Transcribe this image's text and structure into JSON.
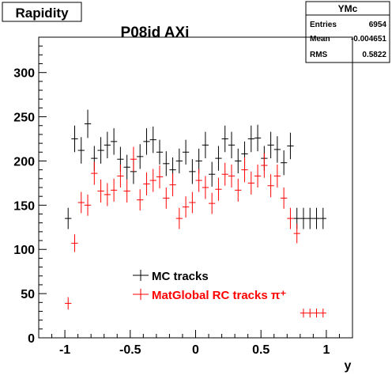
{
  "canvas_label": "Rapidity",
  "stats_box": {
    "name": "YMc",
    "rows": [
      {
        "label": "Entries",
        "value": "6954"
      },
      {
        "label": "Mean",
        "value": "-0.004651"
      },
      {
        "label": "RMS",
        "value": "0.5822"
      }
    ]
  },
  "chart_data": {
    "type": "scatter",
    "title": "P08id AXi",
    "xlabel": "y",
    "ylabel": "",
    "xlim": [
      -1.2,
      1.2
    ],
    "ylim": [
      0,
      340
    ],
    "x_ticks": [
      "-1",
      "-0.5",
      "0",
      "0.5",
      "1"
    ],
    "y_ticks": [
      "0",
      "50",
      "100",
      "150",
      "200",
      "250",
      "300"
    ],
    "bin_width": 0.05,
    "legend_position": "center-bottom",
    "series": [
      {
        "name": "MC tracks",
        "color": "#000000",
        "x": [
          -0.975,
          -0.925,
          -0.875,
          -0.825,
          -0.775,
          -0.725,
          -0.675,
          -0.625,
          -0.575,
          -0.525,
          -0.475,
          -0.425,
          -0.375,
          -0.325,
          -0.275,
          -0.225,
          -0.175,
          -0.125,
          -0.075,
          -0.025,
          0.025,
          0.075,
          0.125,
          0.175,
          0.225,
          0.275,
          0.325,
          0.375,
          0.425,
          0.475,
          0.525,
          0.575,
          0.625,
          0.675,
          0.725,
          0.775,
          0.825,
          0.875,
          0.925,
          0.975
        ],
        "values": [
          135,
          225,
          212,
          242,
          203,
          212,
          218,
          222,
          202,
          193,
          188,
          205,
          222,
          224,
          210,
          197,
          190,
          200,
          210,
          188,
          200,
          218,
          185,
          203,
          225,
          218,
          200,
          208,
          225,
          226,
          203,
          218,
          213,
          198,
          217,
          135,
          135,
          135,
          135,
          135
        ],
        "errors": [
          12,
          15,
          15,
          16,
          14,
          15,
          15,
          15,
          14,
          14,
          14,
          14,
          15,
          15,
          14,
          14,
          14,
          14,
          14,
          14,
          14,
          15,
          14,
          14,
          15,
          15,
          14,
          14,
          15,
          15,
          14,
          15,
          15,
          14,
          15,
          12,
          12,
          12,
          12,
          12
        ]
      },
      {
        "name": "MatGlobal RC tracks π⁺",
        "color": "#ff0000",
        "x": [
          -0.975,
          -0.925,
          -0.875,
          -0.825,
          -0.775,
          -0.725,
          -0.675,
          -0.625,
          -0.575,
          -0.525,
          -0.475,
          -0.425,
          -0.375,
          -0.325,
          -0.275,
          -0.225,
          -0.175,
          -0.125,
          -0.075,
          -0.025,
          0.025,
          0.075,
          0.125,
          0.175,
          0.225,
          0.275,
          0.325,
          0.375,
          0.425,
          0.475,
          0.525,
          0.575,
          0.625,
          0.675,
          0.725,
          0.775,
          0.825,
          0.875,
          0.925,
          0.975
        ],
        "values": [
          39,
          107,
          153,
          150,
          186,
          166,
          162,
          167,
          183,
          166,
          202,
          156,
          174,
          178,
          182,
          158,
          173,
          135,
          148,
          153,
          178,
          170,
          152,
          168,
          185,
          183,
          167,
          190,
          175,
          183,
          195,
          172,
          183,
          158,
          135,
          118,
          28,
          28,
          28,
          28
        ],
        "errors": [
          7,
          10,
          12,
          12,
          13,
          13,
          13,
          13,
          13,
          13,
          14,
          12,
          13,
          13,
          13,
          12,
          13,
          12,
          12,
          12,
          13,
          13,
          12,
          13,
          13,
          13,
          13,
          14,
          13,
          13,
          14,
          13,
          13,
          12,
          12,
          11,
          5,
          5,
          5,
          5
        ]
      }
    ]
  }
}
